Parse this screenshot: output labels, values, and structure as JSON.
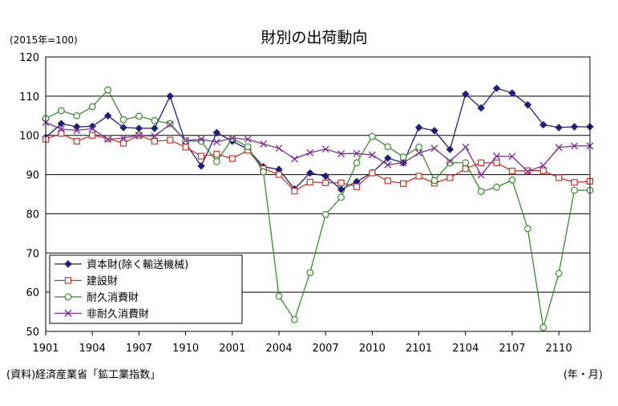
{
  "chart_data": {
    "type": "line",
    "title": "財別の出荷動向",
    "unit_label": "(2015年=100)",
    "source": "(資料)経済産業省「鉱工業指数」",
    "x_unit": "(年・月)",
    "ylim": [
      50,
      120
    ],
    "yticks": [
      50,
      60,
      70,
      80,
      90,
      100,
      110,
      120
    ],
    "grid": true,
    "legend_position": "bottom-left",
    "x_tick_labels": [
      "1901",
      "1904",
      "1907",
      "1910",
      "2001",
      "2004",
      "2007",
      "2010",
      "2101",
      "2104",
      "2107",
      "2110"
    ],
    "x": [
      "1901",
      "1902",
      "1903",
      "1904",
      "1905",
      "1906",
      "1907",
      "1908",
      "1909",
      "1910",
      "1911",
      "1912",
      "2001",
      "2002",
      "2003",
      "2004",
      "2005",
      "2006",
      "2007",
      "2008",
      "2009",
      "2010",
      "2011",
      "2012",
      "2101",
      "2102",
      "2103",
      "2104",
      "2105",
      "2106",
      "2107",
      "2108",
      "2109",
      "2110",
      "2111",
      "2112"
    ],
    "series": [
      {
        "name": "資本財(除く輸送機械)",
        "color": "#1f1f7a",
        "marker": "diamond",
        "values": [
          99.5,
          103,
          102.2,
          102.3,
          105,
          102,
          101.8,
          101.8,
          110,
          98,
          92.2,
          100.7,
          98.5,
          96.5,
          92,
          91.3,
          86.3,
          90.4,
          89.6,
          86.2,
          88.2,
          90.5,
          94.2,
          93,
          102,
          101.2,
          96.4,
          110.5,
          107,
          112,
          110.8,
          107.8,
          102.7,
          102,
          102.2,
          102.2
        ]
      },
      {
        "name": "建設財",
        "color": "#c0392b",
        "marker": "square",
        "values": [
          99,
          100.5,
          98.5,
          100,
          99.2,
          98,
          100,
          98.5,
          98.8,
          97,
          94.7,
          95.2,
          94.1,
          96.2,
          91.5,
          90,
          85.8,
          88.1,
          87.9,
          87.9,
          86.9,
          90.4,
          88.4,
          87.7,
          89.6,
          87.8,
          89.2,
          91.5,
          93,
          93,
          90.9,
          91,
          91,
          89.2,
          88,
          88.3
        ]
      },
      {
        "name": "耐久消費財",
        "color": "#3a8a2e",
        "marker": "circle",
        "values": [
          104.3,
          106.3,
          105,
          107.3,
          111.6,
          104,
          104.9,
          103.8,
          103,
          98.6,
          98.5,
          93.3,
          99.2,
          97.1,
          90.7,
          59,
          53,
          65,
          79.8,
          84.2,
          93,
          99.7,
          97.1,
          94.5,
          97,
          88.5,
          93,
          93,
          85.7,
          86.8,
          88.6,
          76.2,
          51,
          64.8,
          86,
          86
        ]
      },
      {
        "name": "非耐久消費財",
        "color": "#7a2e8e",
        "marker": "x",
        "values": [
          103.3,
          101.6,
          101.3,
          101.7,
          99,
          99.3,
          100,
          99.8,
          102.8,
          98.7,
          99,
          98.3,
          99.3,
          99,
          97.8,
          96.7,
          94,
          95.6,
          96.5,
          95.3,
          95.4,
          95,
          92.5,
          93,
          95.5,
          96.7,
          93.4,
          97,
          89.9,
          94.7,
          94.6,
          90.8,
          92.3,
          96.9,
          97.3,
          97.3
        ]
      }
    ]
  }
}
